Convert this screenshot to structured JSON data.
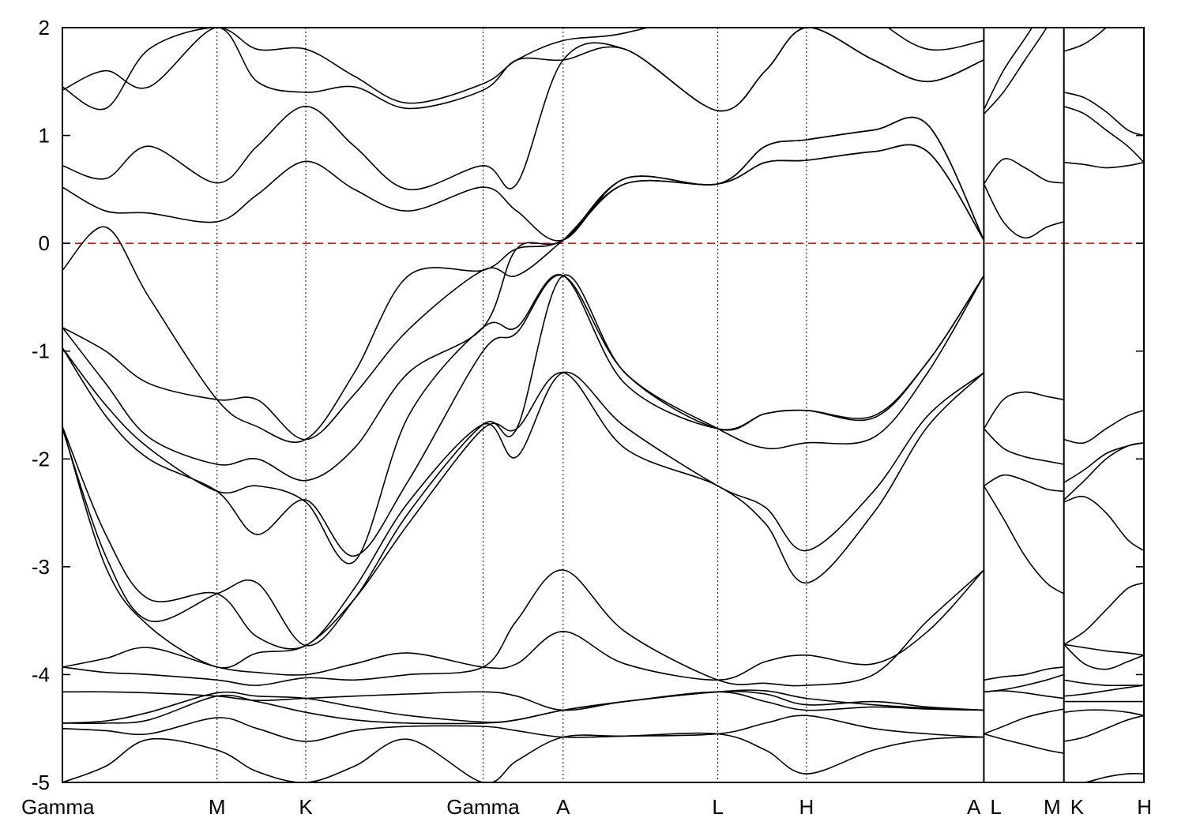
{
  "chart_data": {
    "type": "line",
    "title": "",
    "xlabel": "",
    "ylabel": "",
    "ylim": [
      -5,
      2
    ],
    "yticks": [
      "2",
      "1",
      "0",
      "-1",
      "-2",
      "-3",
      "-4",
      "-5"
    ],
    "grid": false,
    "fermi_level": 0,
    "fermi_color": "#e01010",
    "band_color": "#000000",
    "kpoints": [
      {
        "label": "Gamma",
        "x": 0.0
      },
      {
        "label": "M",
        "x": 0.143
      },
      {
        "label": "K",
        "x": 0.225
      },
      {
        "label": "Gamma",
        "x": 0.389
      },
      {
        "label": "A",
        "x": 0.463
      },
      {
        "label": "L",
        "x": 0.606
      },
      {
        "label": "H",
        "x": 0.688
      },
      {
        "label": "A",
        "x": 0.852
      },
      {
        "label": "L",
        "x": 0.852
      },
      {
        "label": "M",
        "x": 0.926
      },
      {
        "label": "K",
        "x": 0.926
      },
      {
        "label": "H",
        "x": 1.0
      }
    ],
    "breaks": [
      0.852,
      0.926
    ],
    "segments": [
      {
        "path": "Gamma-M-K-Gamma-A-L-H-A",
        "x": [
          0.0,
          0.04,
          0.08,
          0.143,
          0.18,
          0.225,
          0.27,
          0.32,
          0.389,
          0.42,
          0.463,
          0.52,
          0.606,
          0.65,
          0.688,
          0.75,
          0.8,
          0.852
        ],
        "bands": [
          [
            -5.0,
            -4.85,
            -4.6,
            -4.7,
            -4.9,
            -5.0,
            -4.85,
            -4.6,
            -5.0,
            -4.8,
            -4.58,
            -4.57,
            -4.55,
            -4.7,
            -4.92,
            -4.7,
            -4.6,
            -4.58
          ],
          [
            -4.5,
            -4.52,
            -4.55,
            -4.4,
            -4.5,
            -4.62,
            -4.52,
            -4.48,
            -4.48,
            -4.52,
            -4.58,
            -4.57,
            -4.55,
            -4.45,
            -4.38,
            -4.5,
            -4.55,
            -4.58
          ],
          [
            -4.45,
            -4.45,
            -4.42,
            -4.2,
            -4.25,
            -4.35,
            -4.42,
            -4.45,
            -4.45,
            -4.42,
            -4.33,
            -4.25,
            -4.16,
            -4.25,
            -4.33,
            -4.3,
            -4.32,
            -4.33
          ],
          [
            -4.45,
            -4.43,
            -4.35,
            -4.17,
            -4.2,
            -4.22,
            -4.3,
            -4.38,
            -4.44,
            -4.42,
            -4.33,
            -4.25,
            -4.16,
            -4.15,
            -4.22,
            -4.28,
            -4.31,
            -4.33
          ],
          [
            -4.16,
            -4.16,
            -4.17,
            -4.2,
            -4.24,
            -4.22,
            -4.2,
            -4.18,
            -4.16,
            -4.2,
            -4.33,
            -4.25,
            -4.16,
            -4.18,
            -4.28,
            -4.25,
            -4.3,
            -4.33
          ],
          [
            -3.93,
            -3.85,
            -3.75,
            -3.93,
            -3.98,
            -4.0,
            -3.9,
            -3.8,
            -3.93,
            -3.9,
            -3.6,
            -3.9,
            -4.05,
            -3.88,
            -3.82,
            -3.9,
            -3.6,
            -3.03
          ],
          [
            -3.93,
            -3.98,
            -4.0,
            -4.05,
            -4.1,
            -4.03,
            -4.05,
            -4.0,
            -3.93,
            -3.5,
            -3.03,
            -3.6,
            -4.05,
            -4.08,
            -4.1,
            -4.0,
            -3.5,
            -3.03
          ],
          [
            -1.7,
            -3.0,
            -3.55,
            -3.93,
            -3.8,
            -3.73,
            -3.3,
            -2.6,
            -1.72,
            -1.72,
            -1.2,
            -1.9,
            -2.25,
            -2.6,
            -3.15,
            -2.5,
            -1.7,
            -1.2
          ],
          [
            -1.7,
            -2.7,
            -3.3,
            -3.25,
            -3.65,
            -3.73,
            -3.2,
            -2.4,
            -1.68,
            -1.98,
            -1.2,
            -1.7,
            -2.25,
            -2.45,
            -2.85,
            -2.3,
            -1.6,
            -1.2
          ],
          [
            -1.72,
            -2.9,
            -3.5,
            -3.25,
            -3.15,
            -3.73,
            -3.3,
            -2.5,
            -1.68,
            -1.72,
            -0.3,
            -1.2,
            -1.72,
            -1.9,
            -1.85,
            -1.8,
            -1.2,
            -0.3
          ],
          [
            -0.97,
            -1.6,
            -2.0,
            -2.3,
            -2.7,
            -2.38,
            -2.9,
            -2.2,
            -1.0,
            -0.83,
            -0.3,
            -1.2,
            -1.72,
            -1.58,
            -1.55,
            -1.6,
            -1.1,
            -0.3
          ],
          [
            -0.97,
            -1.5,
            -1.9,
            -2.3,
            -2.25,
            -2.4,
            -2.95,
            -1.6,
            -0.78,
            -0.78,
            -0.3,
            -1.3,
            -1.72,
            -1.58,
            -1.55,
            -1.62,
            -1.1,
            -0.3
          ],
          [
            -0.78,
            -1.3,
            -1.8,
            -2.05,
            -2.0,
            -2.2,
            -1.9,
            -1.2,
            -0.78,
            -0.05,
            0.03,
            0.6,
            0.55,
            0.9,
            0.96,
            1.05,
            1.1,
            0.03
          ],
          [
            -0.78,
            -1.0,
            -1.3,
            -1.45,
            -1.45,
            -1.82,
            -1.4,
            -0.8,
            -0.25,
            -0.3,
            0.03,
            0.55,
            0.55,
            0.75,
            0.77,
            0.85,
            0.85,
            0.03
          ],
          [
            -0.25,
            0.15,
            -0.5,
            -1.45,
            -1.7,
            -1.82,
            -1.2,
            -0.3,
            -0.25,
            -0.05,
            0.03,
            0.55,
            0.55,
            0.75,
            0.77,
            0.85,
            0.85,
            0.03
          ],
          [
            0.52,
            0.3,
            0.28,
            0.2,
            0.45,
            0.76,
            0.5,
            0.3,
            0.52,
            0.3,
            0.03,
            0.6,
            0.55,
            0.9,
            0.96,
            1.05,
            1.1,
            0.03
          ],
          [
            0.72,
            0.6,
            0.9,
            0.56,
            0.9,
            1.27,
            0.9,
            0.5,
            0.72,
            0.55,
            1.7,
            1.8,
            1.23,
            1.6,
            2.0,
            1.7,
            1.5,
            1.7
          ],
          [
            1.42,
            1.6,
            1.45,
            2.0,
            1.5,
            1.4,
            1.45,
            1.25,
            1.42,
            1.7,
            1.7,
            1.8,
            1.23,
            1.6,
            2.0,
            1.7,
            1.5,
            1.7
          ],
          [
            1.45,
            1.25,
            1.8,
            2.0,
            1.8,
            1.8,
            1.55,
            1.3,
            1.48,
            1.7,
            1.88,
            1.95,
            2.2,
            2.5,
            2.6,
            2.1,
            1.8,
            1.88
          ]
        ]
      },
      {
        "path": "L-M",
        "x": [
          0.852,
          0.87,
          0.89,
          0.91,
          0.926
        ],
        "bands": [
          [
            -4.55,
            -4.6,
            -4.65,
            -4.7,
            -4.73
          ],
          [
            -4.55,
            -4.48,
            -4.4,
            -4.35,
            -4.32
          ],
          [
            -4.16,
            -4.15,
            -4.17,
            -4.2,
            -4.22
          ],
          [
            -4.16,
            -4.14,
            -4.1,
            -4.05,
            -4.0
          ],
          [
            -4.05,
            -4.02,
            -4.0,
            -3.95,
            -3.93
          ],
          [
            -2.25,
            -2.55,
            -2.9,
            -3.15,
            -3.25
          ],
          [
            -2.25,
            -2.15,
            -2.2,
            -2.28,
            -2.3
          ],
          [
            -1.72,
            -1.9,
            -1.98,
            -2.02,
            -2.05
          ],
          [
            -1.72,
            -1.45,
            -1.38,
            -1.42,
            -1.45
          ],
          [
            0.55,
            0.2,
            0.05,
            0.15,
            0.2
          ],
          [
            0.55,
            0.78,
            0.7,
            0.58,
            0.56
          ],
          [
            1.2,
            1.4,
            1.7,
            2.0,
            2.3
          ],
          [
            1.24,
            1.6,
            1.9,
            2.2,
            2.4
          ]
        ]
      },
      {
        "path": "K-H",
        "x": [
          0.926,
          0.945,
          0.965,
          0.985,
          1.0
        ],
        "bands": [
          [
            -5.0,
            -5.0,
            -4.95,
            -4.92,
            -4.92
          ],
          [
            -4.62,
            -4.58,
            -4.5,
            -4.42,
            -4.38
          ],
          [
            -4.35,
            -4.33,
            -4.33,
            -4.35,
            -4.38
          ],
          [
            -4.25,
            -4.25,
            -4.25,
            -4.25,
            -4.25
          ],
          [
            -4.2,
            -4.18,
            -4.15,
            -4.12,
            -4.1
          ],
          [
            -4.05,
            -4.08,
            -4.1,
            -4.1,
            -4.1
          ],
          [
            -3.72,
            -3.9,
            -3.95,
            -3.88,
            -3.82
          ],
          [
            -3.72,
            -3.75,
            -3.78,
            -3.8,
            -3.82
          ],
          [
            -3.72,
            -3.6,
            -3.4,
            -3.2,
            -3.15
          ],
          [
            -2.4,
            -2.35,
            -2.5,
            -2.75,
            -2.85
          ],
          [
            -2.22,
            -2.1,
            -1.95,
            -1.88,
            -1.85
          ],
          [
            -2.38,
            -2.2,
            -2.0,
            -1.88,
            -1.85
          ],
          [
            -1.82,
            -1.85,
            -1.72,
            -1.6,
            -1.55
          ],
          [
            0.75,
            0.73,
            0.7,
            0.72,
            0.75
          ],
          [
            1.27,
            1.2,
            1.05,
            0.9,
            0.75
          ],
          [
            1.4,
            1.35,
            1.22,
            1.05,
            1.0
          ],
          [
            1.78,
            1.85,
            2.0,
            2.2,
            2.3
          ]
        ]
      }
    ]
  }
}
